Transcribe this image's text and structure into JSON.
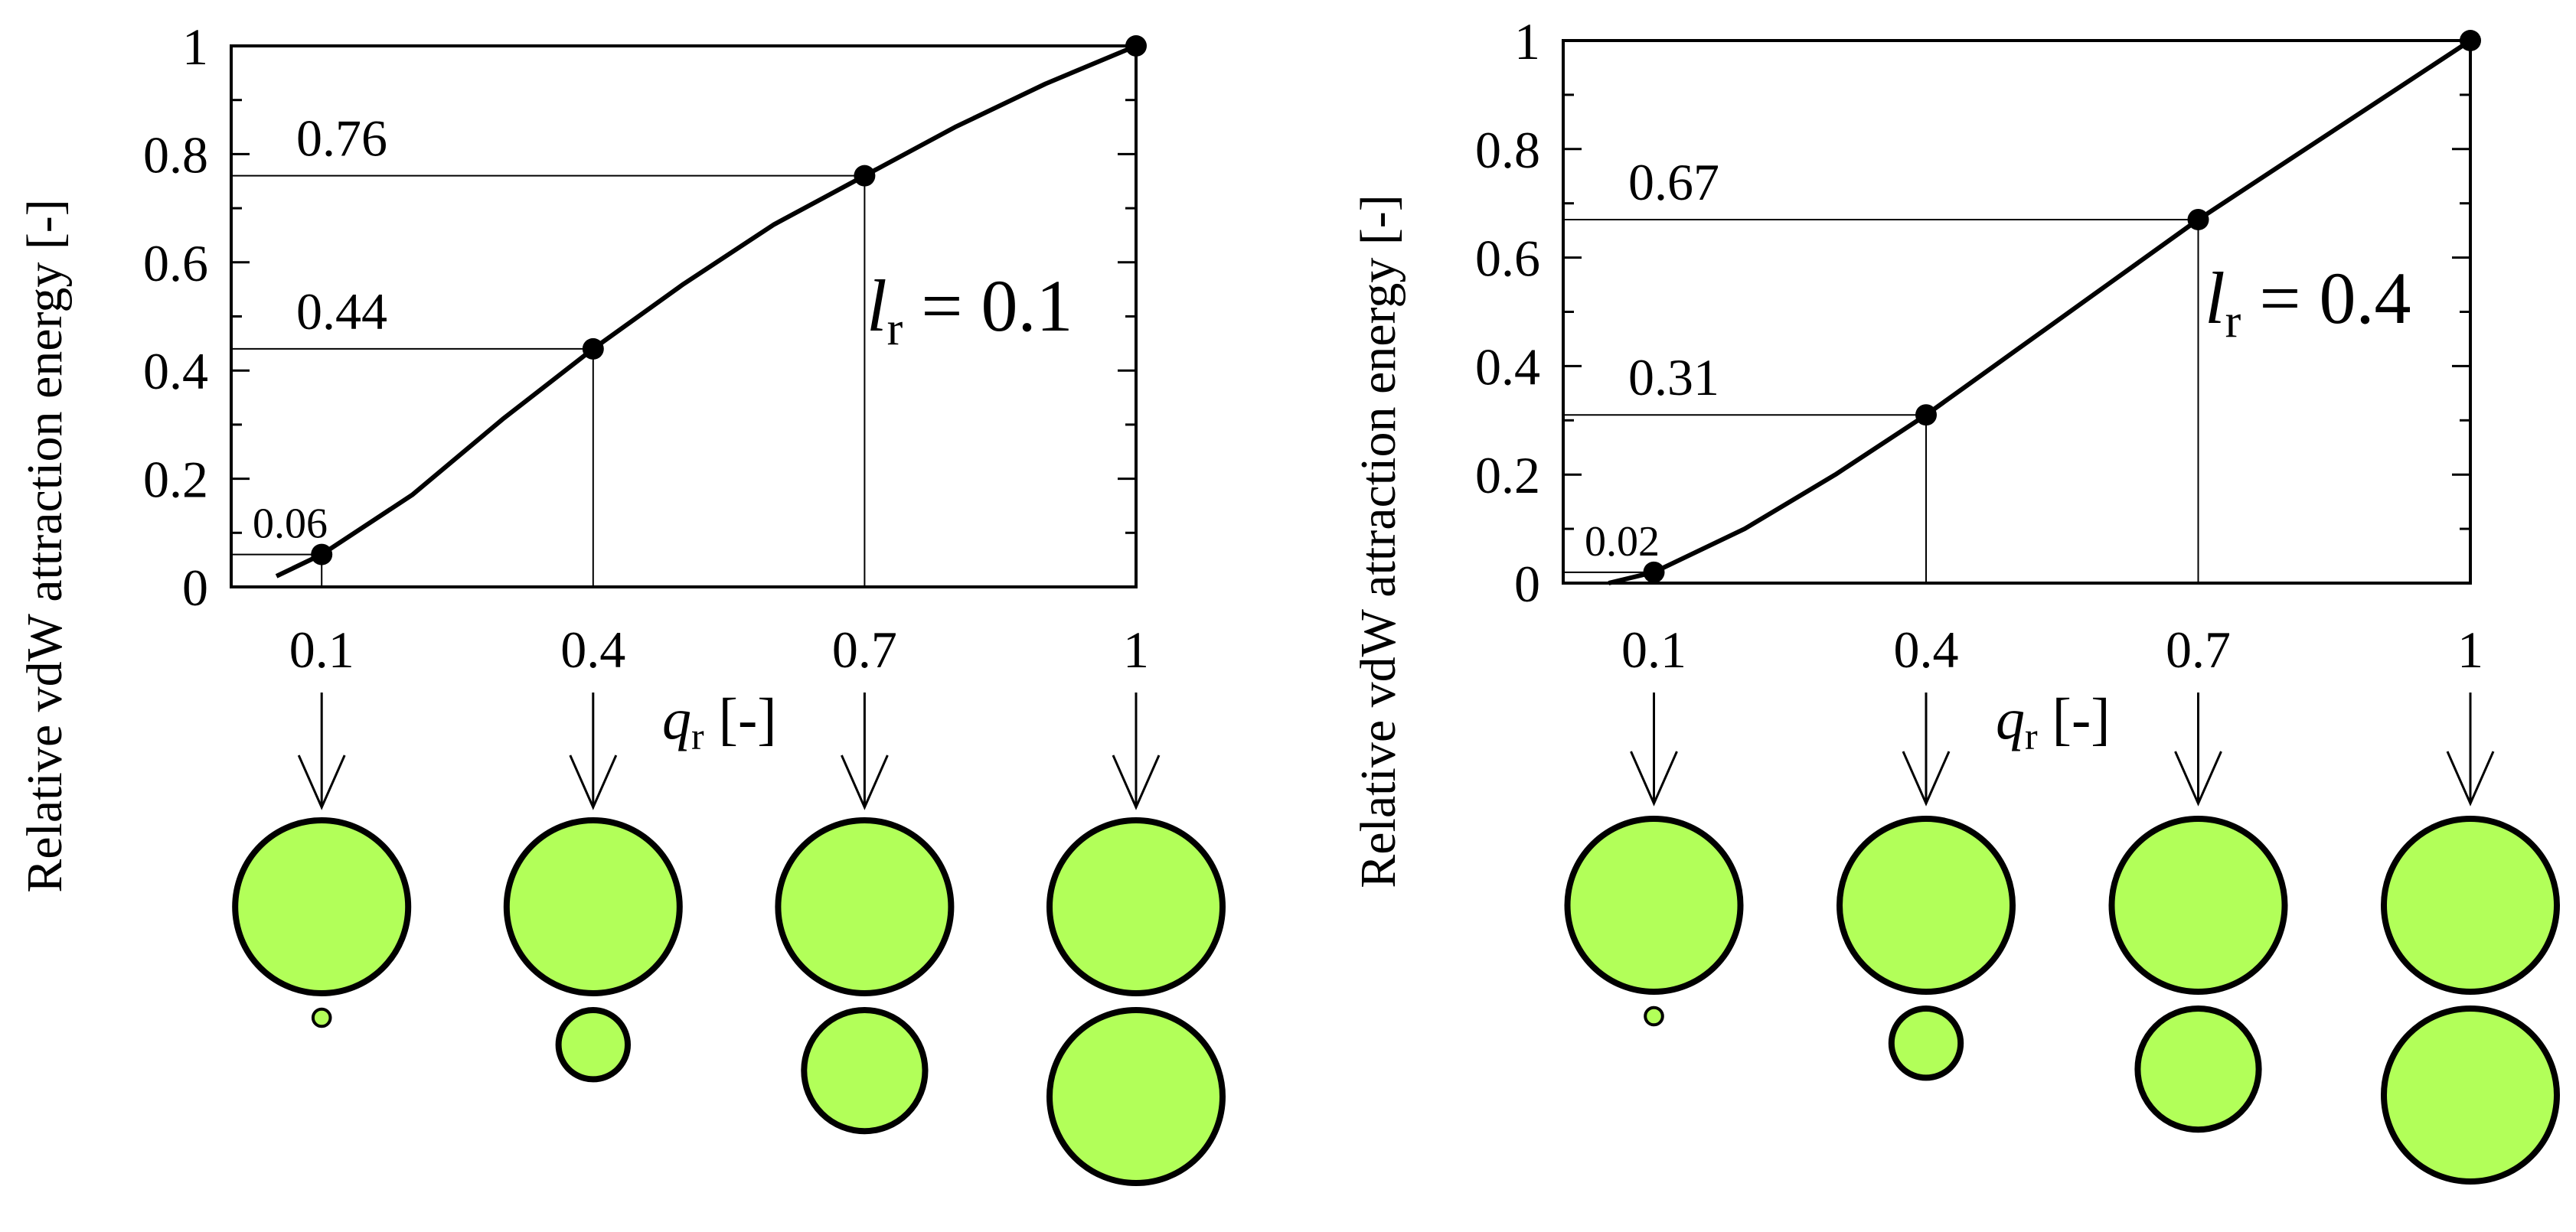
{
  "chart_data": [
    {
      "type": "line",
      "title": "",
      "xlabel": "q",
      "xlabel_sub": "r",
      "xlabel_unit": " [-]",
      "ylabel": "Relative vdW attraction energy [-]",
      "xlim": [
        0,
        1
      ],
      "ylim": [
        0,
        1
      ],
      "x_ticks": [
        "0.1",
        "0.4",
        "0.7",
        "1"
      ],
      "y_ticks": [
        "0",
        "0.2",
        "0.4",
        "0.6",
        "0.8",
        "1"
      ],
      "annotation": {
        "symbol": "l",
        "sub": "r",
        "text": " = 0.1"
      },
      "curve": {
        "x": [
          0.05,
          0.1,
          0.2,
          0.3,
          0.4,
          0.5,
          0.6,
          0.7,
          0.8,
          0.9,
          1.0
        ],
        "y": [
          0.02,
          0.06,
          0.17,
          0.31,
          0.44,
          0.56,
          0.67,
          0.76,
          0.85,
          0.93,
          1.0
        ]
      },
      "points": [
        {
          "x": 0.1,
          "y": 0.06,
          "label": "0.06"
        },
        {
          "x": 0.4,
          "y": 0.44,
          "label": "0.44"
        },
        {
          "x": 0.7,
          "y": 0.76,
          "label": "0.76"
        },
        {
          "x": 1.0,
          "y": 1.0,
          "label": ""
        }
      ],
      "particles": [
        {
          "q": 0.1,
          "large": 1,
          "small": 0.1
        },
        {
          "q": 0.4,
          "large": 1,
          "small": 0.4
        },
        {
          "q": 0.7,
          "large": 1,
          "small": 0.7
        },
        {
          "q": 1.0,
          "large": 1,
          "small": 1.0
        }
      ]
    },
    {
      "type": "line",
      "title": "",
      "xlabel": "q",
      "xlabel_sub": "r",
      "xlabel_unit": " [-]",
      "ylabel": "Relative vdW attraction energy [-]",
      "xlim": [
        0,
        1
      ],
      "ylim": [
        0,
        1
      ],
      "x_ticks": [
        "0.1",
        "0.4",
        "0.7",
        "1"
      ],
      "y_ticks": [
        "0",
        "0.2",
        "0.4",
        "0.6",
        "0.8",
        "1"
      ],
      "annotation": {
        "symbol": "l",
        "sub": "r",
        "text": " = 0.4"
      },
      "curve": {
        "x": [
          0.05,
          0.1,
          0.2,
          0.3,
          0.4,
          0.5,
          0.6,
          0.7,
          0.8,
          0.9,
          1.0
        ],
        "y": [
          0.0,
          0.02,
          0.1,
          0.2,
          0.31,
          0.43,
          0.55,
          0.67,
          0.78,
          0.89,
          1.0
        ]
      },
      "points": [
        {
          "x": 0.1,
          "y": 0.02,
          "label": "0.02"
        },
        {
          "x": 0.4,
          "y": 0.31,
          "label": "0.31"
        },
        {
          "x": 0.7,
          "y": 0.67,
          "label": "0.67"
        },
        {
          "x": 1.0,
          "y": 1.0,
          "label": ""
        }
      ],
      "particles": [
        {
          "q": 0.1,
          "large": 1,
          "small": 0.1
        },
        {
          "q": 0.4,
          "large": 1,
          "small": 0.4
        },
        {
          "q": 0.7,
          "large": 1,
          "small": 0.7
        },
        {
          "q": 1.0,
          "large": 1,
          "small": 1.0
        }
      ]
    }
  ],
  "colors": {
    "particle_fill": "#b2ff59",
    "stroke": "#000000",
    "background": "#ffffff"
  }
}
